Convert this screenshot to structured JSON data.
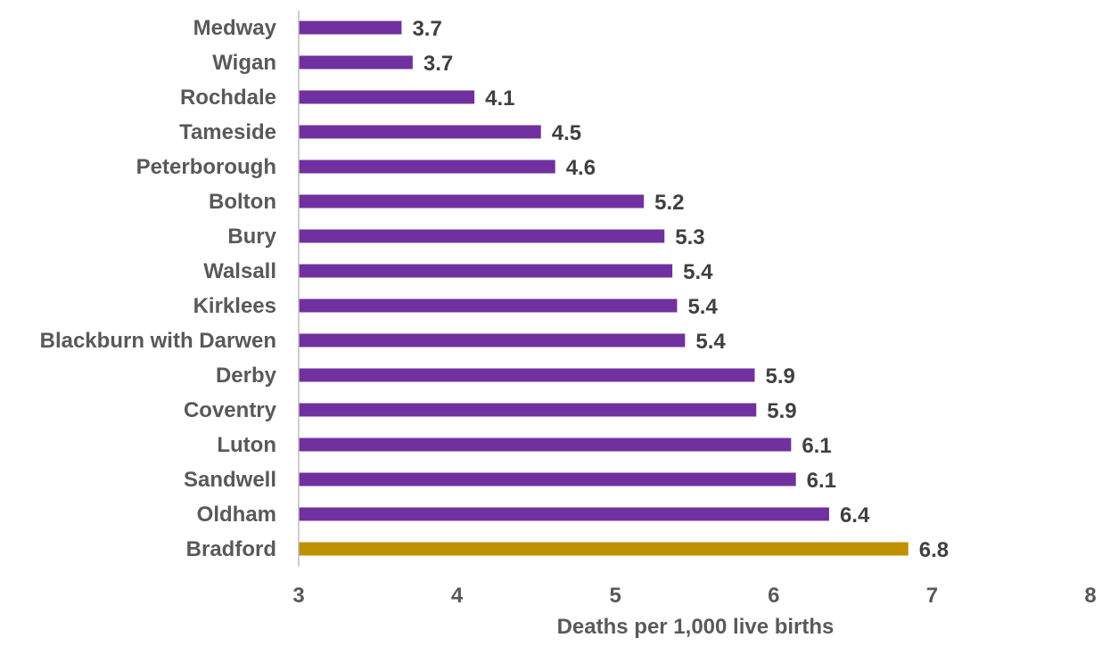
{
  "chart_data": {
    "type": "bar",
    "orientation": "horizontal",
    "categories": [
      "Medway",
      "Wigan",
      "Rochdale",
      "Tameside",
      "Peterborough ",
      "Bolton",
      "Bury",
      "Walsall",
      "Kirklees",
      "Blackburn with Darwen",
      "Derby",
      "Coventry",
      "Luton",
      "Sandwell",
      "Oldham",
      "Bradford"
    ],
    "values": [
      3.65,
      3.72,
      4.11,
      4.53,
      4.62,
      5.18,
      5.31,
      5.36,
      5.39,
      5.44,
      5.88,
      5.89,
      6.11,
      6.14,
      6.35,
      6.85
    ],
    "value_labels": [
      "3.7",
      "3.7",
      "4.1",
      "4.5",
      "4.6",
      "5.2",
      "5.3",
      "5.4",
      "5.4",
      "5.4",
      "5.9",
      "5.9",
      "6.1",
      "6.1",
      "6.4",
      "6.8"
    ],
    "highlight": "Bradford",
    "colors": {
      "bar": "#7030A0",
      "highlight": "#BF9000",
      "axis": "#BFBFBF"
    },
    "xlim": [
      3,
      8
    ],
    "xticks": [
      3,
      4,
      5,
      6,
      7,
      8
    ],
    "xlabel": "Deaths per 1,000 live births",
    "ylabel": "",
    "title": "",
    "grid": false,
    "legend": "none"
  }
}
